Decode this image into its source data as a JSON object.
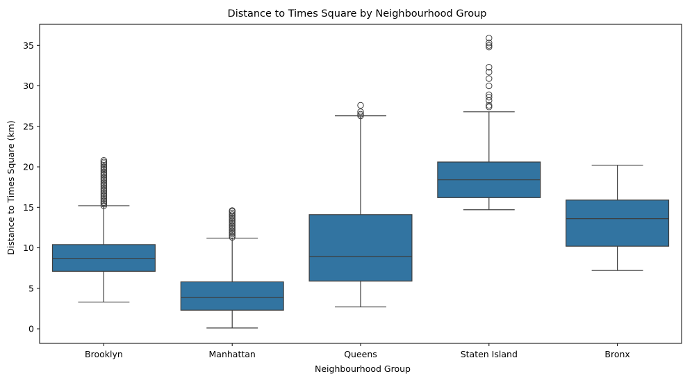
{
  "chart_data": {
    "type": "box",
    "title": "Distance to Times Square by Neighbourhood Group",
    "xlabel": "Neighbourhood Group",
    "ylabel": "Distance to Times Square (km)",
    "ylim": [
      -1.8,
      37.6
    ],
    "yticks": [
      0,
      5,
      10,
      15,
      20,
      25,
      30,
      35
    ],
    "grid": false,
    "box_color": "#3274a1",
    "line_color": "#3d3d3d",
    "categories": [
      "Brooklyn",
      "Manhattan",
      "Queens",
      "Staten Island",
      "Bronx"
    ],
    "boxes": [
      {
        "name": "Brooklyn",
        "whisker_low": 3.3,
        "q1": 7.1,
        "median": 8.7,
        "q3": 10.4,
        "whisker_high": 15.2,
        "outliers": [
          15.2,
          15.4,
          15.6,
          15.8,
          16.0,
          16.2,
          16.4,
          16.6,
          16.8,
          17.0,
          17.2,
          17.4,
          17.6,
          17.8,
          18.0,
          18.2,
          18.4,
          18.6,
          18.8,
          19.0,
          19.2,
          19.4,
          19.6,
          19.8,
          20.0,
          20.2,
          20.4,
          20.6,
          20.8
        ]
      },
      {
        "name": "Manhattan",
        "whisker_low": 0.1,
        "q1": 2.3,
        "median": 3.9,
        "q3": 5.8,
        "whisker_high": 11.2,
        "outliers": [
          11.3,
          11.5,
          11.7,
          11.9,
          12.1,
          12.3,
          12.5,
          12.7,
          12.9,
          13.1,
          13.3,
          13.5,
          13.7,
          13.9,
          14.1,
          14.3,
          14.5,
          14.6
        ]
      },
      {
        "name": "Queens",
        "whisker_low": 2.7,
        "q1": 5.9,
        "median": 8.9,
        "q3": 14.1,
        "whisker_high": 26.3,
        "outliers": [
          26.3,
          26.5,
          26.8,
          27.6
        ]
      },
      {
        "name": "Staten Island",
        "whisker_low": 14.7,
        "q1": 16.2,
        "median": 18.4,
        "q3": 20.6,
        "whisker_high": 26.8,
        "outliers": [
          27.4,
          27.6,
          28.2,
          28.6,
          28.9,
          30.0,
          30.9,
          31.7,
          32.3,
          34.8,
          35.0,
          35.3,
          35.9
        ]
      },
      {
        "name": "Bronx",
        "whisker_low": 7.2,
        "q1": 10.2,
        "median": 13.6,
        "q3": 15.9,
        "whisker_high": 20.2,
        "outliers": []
      }
    ]
  }
}
